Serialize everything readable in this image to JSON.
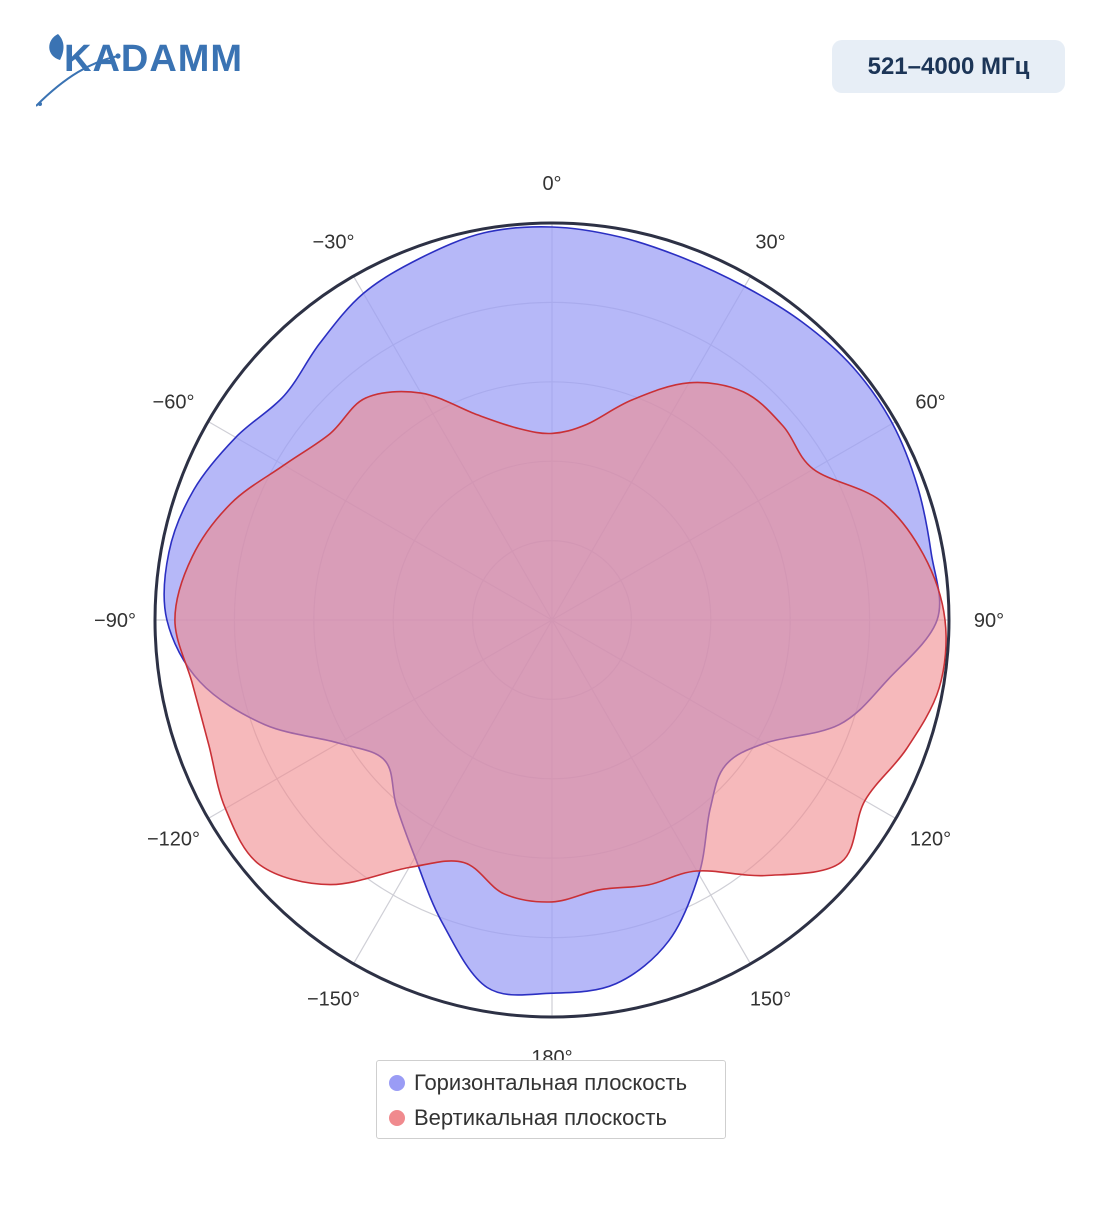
{
  "logo": {
    "text": "KADAMM"
  },
  "badge": {
    "label": "521–4000 МГц"
  },
  "colors": {
    "horizontal_fill": "#9a9cf5",
    "horizontal_line": "#2b2fc2",
    "vertical_fill": "#f08a8e",
    "vertical_line": "#c93036",
    "grid": "#cfcfd6",
    "outer_ring": "#2d3145",
    "brand": "#3a73b3"
  },
  "chart_data": {
    "type": "polar",
    "title": "",
    "angular_ticks": [
      "0°",
      "30°",
      "60°",
      "90°",
      "120°",
      "150°",
      "180°",
      "−150°",
      "−120°",
      "−90°",
      "−60°",
      "−30°"
    ],
    "angular_tick_values": [
      0,
      30,
      60,
      90,
      120,
      150,
      180,
      -150,
      -120,
      -90,
      -60,
      -30
    ],
    "direction": "clockwise",
    "rotation": 0,
    "radial_range": [
      0,
      1
    ],
    "grid": true,
    "legend_position": "bottom-center",
    "series": [
      {
        "name": "Горизонтальная плоскость",
        "theta": [
          0,
          10,
          20,
          30,
          40,
          50,
          60,
          70,
          80,
          90,
          100,
          110,
          120,
          130,
          140,
          150,
          160,
          170,
          180,
          190,
          200,
          210,
          220,
          230,
          240,
          250,
          260,
          270,
          280,
          290,
          300,
          310,
          320,
          330,
          340,
          350
        ],
        "r": [
          0.99,
          0.98,
          0.97,
          0.97,
          0.98,
          0.99,
          0.99,
          0.98,
          0.97,
          0.97,
          0.86,
          0.77,
          0.62,
          0.57,
          0.62,
          0.74,
          0.86,
          0.93,
          0.94,
          0.94,
          0.81,
          0.69,
          0.61,
          0.55,
          0.62,
          0.77,
          0.9,
          0.97,
          0.98,
          0.96,
          0.92,
          0.88,
          0.91,
          0.95,
          0.97,
          0.99
        ]
      },
      {
        "name": "Вертикальная плоскость",
        "theta": [
          0,
          10,
          20,
          30,
          40,
          50,
          60,
          70,
          80,
          90,
          100,
          110,
          120,
          130,
          140,
          150,
          160,
          170,
          180,
          190,
          200,
          210,
          220,
          230,
          240,
          250,
          260,
          270,
          280,
          290,
          300,
          310,
          320,
          330,
          340,
          350
        ],
        "r": [
          0.47,
          0.5,
          0.59,
          0.69,
          0.75,
          0.76,
          0.76,
          0.88,
          0.95,
          0.99,
          0.99,
          0.95,
          0.91,
          0.95,
          0.84,
          0.73,
          0.71,
          0.69,
          0.71,
          0.7,
          0.65,
          0.72,
          0.87,
          0.96,
          0.95,
          0.92,
          0.92,
          0.95,
          0.92,
          0.86,
          0.78,
          0.73,
          0.73,
          0.66,
          0.55,
          0.49
        ]
      }
    ]
  }
}
